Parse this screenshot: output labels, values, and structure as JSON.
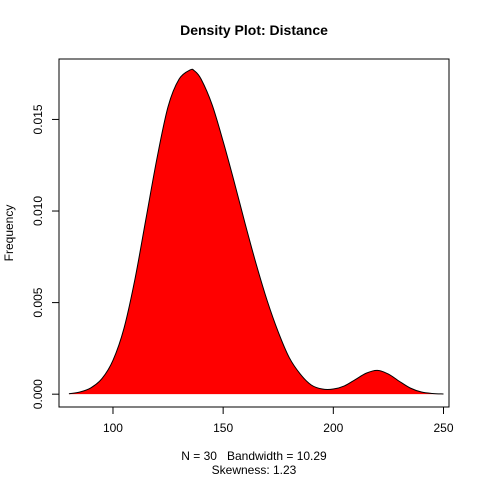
{
  "chart_data": {
    "type": "area",
    "title": "Density Plot: Distance",
    "ylabel": "Frequency",
    "subtitle_lines": [
      "N = 30   Bandwidth = 10.29",
      "Skewness: 1.23"
    ],
    "xlim": [
      75.5,
      252.5
    ],
    "ylim": [
      -0.0007,
      0.0183
    ],
    "x_ticks": [
      100,
      150,
      200,
      250
    ],
    "x_tick_labels": [
      "100",
      "150",
      "200",
      "250"
    ],
    "y_ticks": [
      0,
      0.005,
      0.01,
      0.015
    ],
    "y_tick_labels": [
      "0.000",
      "0.005",
      "0.010",
      "0.015"
    ],
    "grid": false,
    "fill_color": "#ff0000",
    "line_color": "#000000",
    "series": [
      {
        "x": [
          80,
          85,
          90,
          95,
          100,
          105,
          110,
          115,
          120,
          125,
          130,
          135,
          137,
          140,
          145,
          150,
          155,
          160,
          165,
          170,
          175,
          180,
          185,
          190,
          195,
          200,
          205,
          210,
          215,
          220,
          225,
          230,
          235,
          240,
          245,
          250
        ],
        "y": [
          2e-05,
          0.00012,
          0.00035,
          0.00085,
          0.00185,
          0.0036,
          0.0063,
          0.0096,
          0.0129,
          0.0157,
          0.0172,
          0.0177,
          0.01765,
          0.0172,
          0.0158,
          0.0138,
          0.0116,
          0.0093,
          0.0071,
          0.0051,
          0.0034,
          0.002,
          0.0011,
          0.0005,
          0.00028,
          0.00028,
          0.00045,
          0.0008,
          0.00115,
          0.0013,
          0.0011,
          0.0007,
          0.00033,
          0.00012,
          4e-05,
          1e-05
        ]
      }
    ]
  }
}
